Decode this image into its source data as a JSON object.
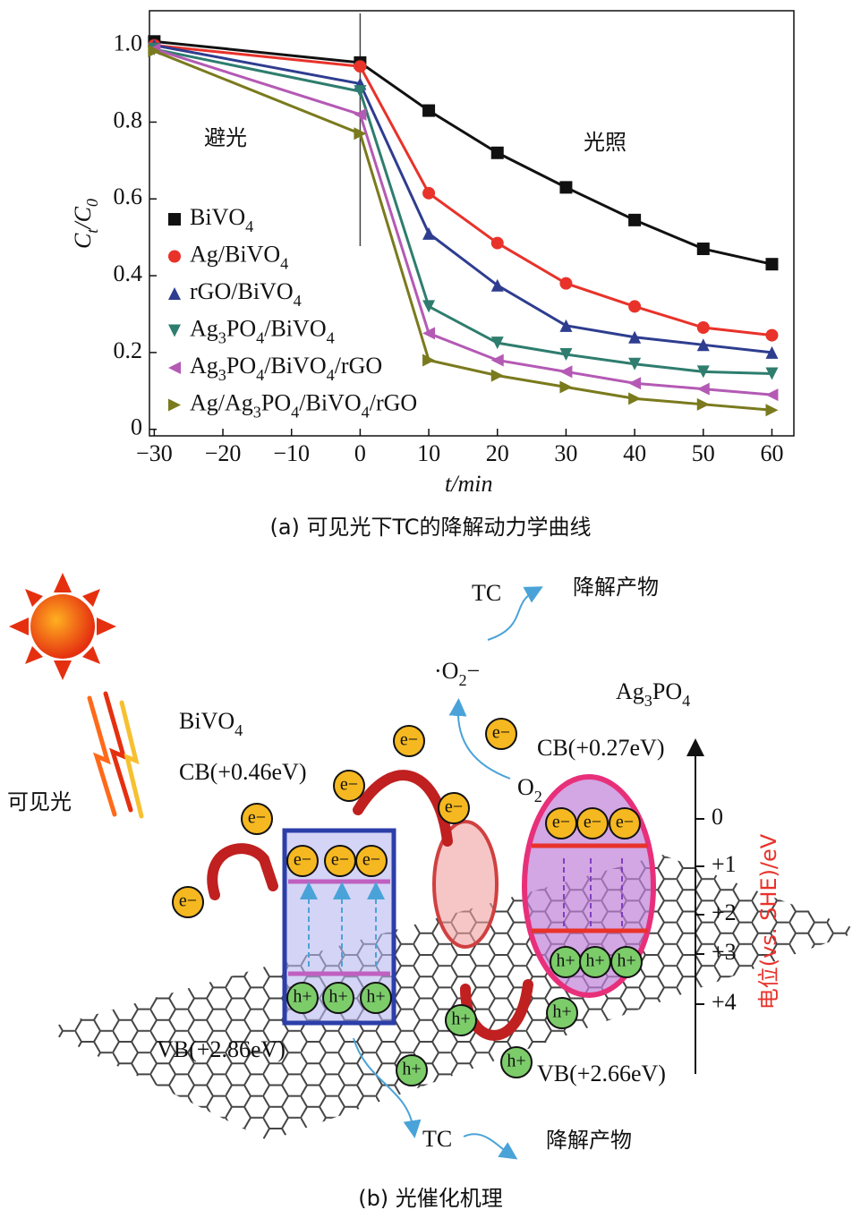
{
  "chart_data": {
    "type": "line",
    "caption": "(a) 可见光下TC的降解动力学曲线",
    "x_label": "t/min",
    "y_label": "Ct/C0",
    "annotations": [
      "避光",
      "光照"
    ],
    "x": [
      -30,
      0,
      10,
      20,
      30,
      40,
      50,
      60
    ],
    "xlim": [
      -30.7,
      63.2
    ],
    "ylim": [
      -0.017,
      1.09
    ],
    "xticks": [
      {
        "value": -30,
        "label": "−30"
      },
      {
        "value": -20,
        "label": "−20"
      },
      {
        "value": -10,
        "label": "−10"
      },
      0,
      10,
      20,
      30,
      40,
      50,
      60
    ],
    "yticks": [
      0,
      0.2,
      0.4,
      0.6,
      0.8,
      {
        "value": 1,
        "label": "1.0"
      }
    ],
    "series": [
      {
        "name": "BiVO4",
        "color": "#111111",
        "marker": "square",
        "values": [
          1.01,
          0.955,
          0.83,
          0.72,
          0.63,
          0.545,
          0.47,
          0.43
        ]
      },
      {
        "name": "Ag/BiVO4",
        "color": "#e8322a",
        "marker": "circle",
        "values": [
          1.0,
          0.945,
          0.615,
          0.485,
          0.38,
          0.32,
          0.265,
          0.245
        ]
      },
      {
        "name": "rGO/BiVO4",
        "color": "#2e3d8f",
        "marker": "triangle-up",
        "values": [
          1.0,
          0.9,
          0.51,
          0.375,
          0.27,
          0.24,
          0.22,
          0.2
        ]
      },
      {
        "name": "Ag3PO4/BiVO4",
        "color": "#2e7d6e",
        "marker": "triangle-down",
        "values": [
          0.99,
          0.88,
          0.32,
          0.225,
          0.195,
          0.17,
          0.15,
          0.145
        ]
      },
      {
        "name": "Ag3PO4/BiVO4/rGO",
        "color": "#b45ab4",
        "marker": "triangle-left",
        "values": [
          0.99,
          0.82,
          0.25,
          0.18,
          0.15,
          0.12,
          0.105,
          0.09
        ]
      },
      {
        "name": "Ag/Ag3PO4/BiVO4/rGO",
        "color": "#7a7a1e",
        "marker": "triangle-right",
        "values": [
          0.985,
          0.77,
          0.18,
          0.14,
          0.11,
          0.08,
          0.065,
          0.05
        ]
      }
    ]
  },
  "diagram": {
    "caption": "(b) 光催化机理",
    "light": "可见光",
    "bivo4": {
      "name": "BiVO4",
      "cb": "CB(+0.46eV)",
      "vb": "VB(+2.86eV)"
    },
    "ag3po4": {
      "name": "Ag3PO4",
      "cb": "CB(+0.27eV)",
      "vb": "VB(+2.66eV)"
    },
    "radical": "·O2−",
    "oxygen": "O2",
    "tc_top": "TC",
    "product_top": "降解产物",
    "tc_bottom": "TC",
    "product_bottom": "降解产物",
    "electron": "e−",
    "hole": "h+",
    "potential_axis": {
      "label": "电位(vs. SHE)/eV",
      "ticks": [
        "0",
        "+1",
        "+2",
        "+3",
        "+4"
      ]
    }
  }
}
